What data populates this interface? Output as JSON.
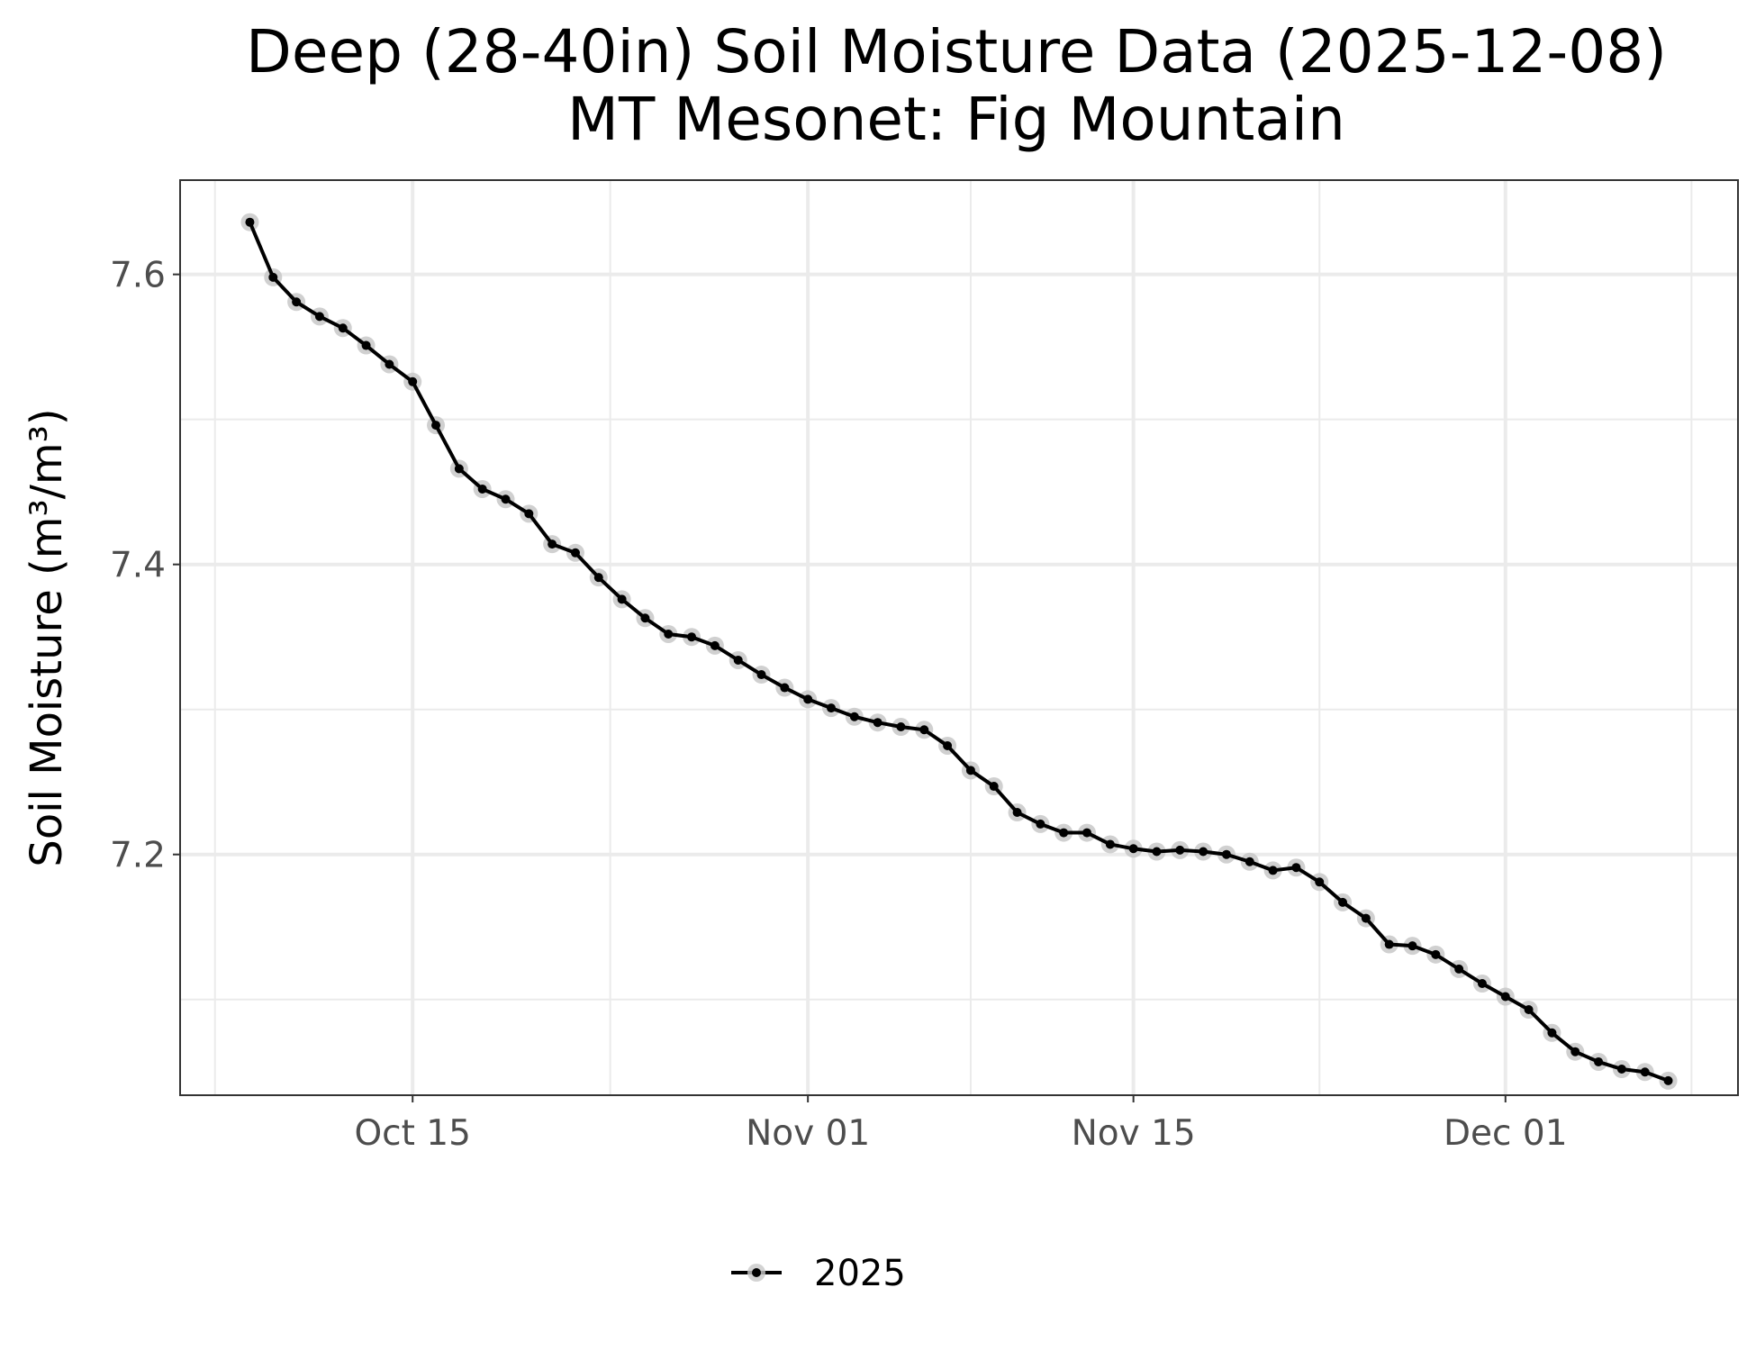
{
  "chart_data": {
    "type": "line",
    "title": "Deep (28-40in) Soil Moisture Data (2025-12-08)",
    "subtitle": "MT Mesonet: Fig Mountain",
    "xlabel": "",
    "ylabel": "Soil Moisture (m³/m³)",
    "x_ticks": [
      {
        "date": "2025-10-15",
        "label": "Oct 15"
      },
      {
        "date": "2025-11-01",
        "label": "Nov 01"
      },
      {
        "date": "2025-11-15",
        "label": "Nov 15"
      },
      {
        "date": "2025-12-01",
        "label": "Dec 01"
      }
    ],
    "y_ticks": [
      7.2,
      7.4,
      7.6
    ],
    "xlim": [
      "2025-10-05",
      "2025-12-11"
    ],
    "ylim": [
      7.034,
      7.665
    ],
    "grid": true,
    "legend_position": "bottom",
    "colors": {
      "line": "#000000",
      "point_halo": "#c8c8c8",
      "grid": "#ebebeb",
      "panel_border": "#333333"
    },
    "series": [
      {
        "name": "2025",
        "x": [
          "2025-10-08",
          "2025-10-09",
          "2025-10-10",
          "2025-10-11",
          "2025-10-12",
          "2025-10-13",
          "2025-10-14",
          "2025-10-15",
          "2025-10-16",
          "2025-10-17",
          "2025-10-18",
          "2025-10-19",
          "2025-10-20",
          "2025-10-21",
          "2025-10-22",
          "2025-10-23",
          "2025-10-24",
          "2025-10-25",
          "2025-10-26",
          "2025-10-27",
          "2025-10-28",
          "2025-10-29",
          "2025-10-30",
          "2025-10-31",
          "2025-11-01",
          "2025-11-02",
          "2025-11-03",
          "2025-11-04",
          "2025-11-05",
          "2025-11-06",
          "2025-11-07",
          "2025-11-08",
          "2025-11-09",
          "2025-11-10",
          "2025-11-11",
          "2025-11-12",
          "2025-11-13",
          "2025-11-14",
          "2025-11-15",
          "2025-11-16",
          "2025-11-17",
          "2025-11-18",
          "2025-11-19",
          "2025-11-20",
          "2025-11-21",
          "2025-11-22",
          "2025-11-23",
          "2025-11-24",
          "2025-11-25",
          "2025-11-26",
          "2025-11-27",
          "2025-11-28",
          "2025-11-29",
          "2025-11-30",
          "2025-12-01",
          "2025-12-02",
          "2025-12-03",
          "2025-12-04",
          "2025-12-05",
          "2025-12-06",
          "2025-12-07",
          "2025-12-08"
        ],
        "values": [
          7.636,
          7.598,
          7.581,
          7.571,
          7.563,
          7.551,
          7.538,
          7.526,
          7.496,
          7.466,
          7.452,
          7.445,
          7.435,
          7.414,
          7.408,
          7.391,
          7.376,
          7.363,
          7.352,
          7.35,
          7.344,
          7.334,
          7.324,
          7.315,
          7.307,
          7.301,
          7.295,
          7.291,
          7.288,
          7.286,
          7.275,
          7.258,
          7.247,
          7.229,
          7.221,
          7.215,
          7.215,
          7.207,
          7.204,
          7.202,
          7.203,
          7.202,
          7.2,
          7.195,
          7.189,
          7.191,
          7.181,
          7.167,
          7.156,
          7.138,
          7.137,
          7.131,
          7.121,
          7.111,
          7.102,
          7.093,
          7.077,
          7.064,
          7.057,
          7.052,
          7.05,
          7.044
        ]
      }
    ]
  }
}
